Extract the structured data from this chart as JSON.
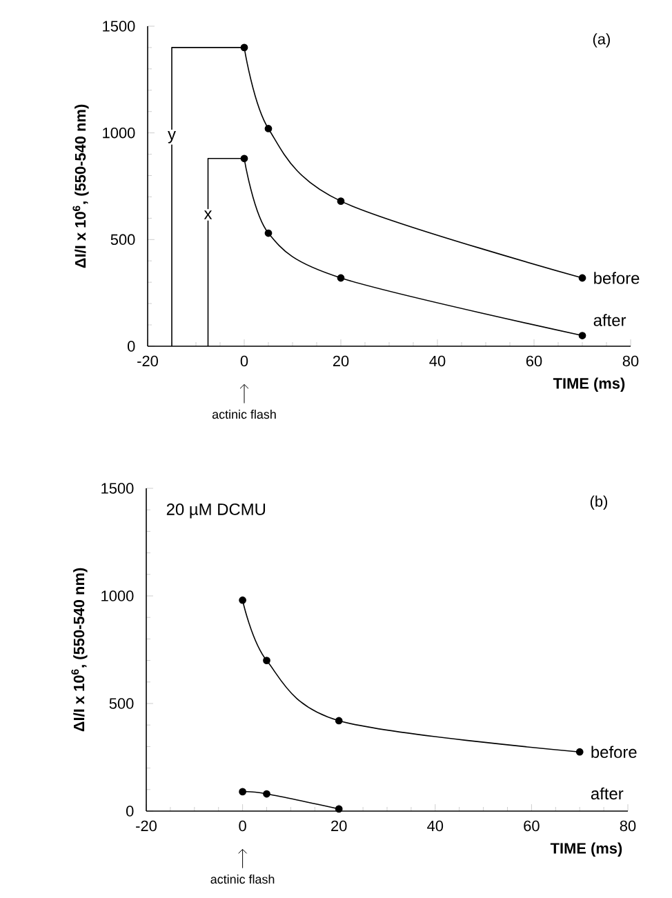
{
  "chart_data": [
    {
      "type": "line",
      "title": "(a)",
      "xlabel": "TIME  (ms)",
      "ylabel": "ΔI/I x 10$^{6}$, (550-540 nm)",
      "xlim": [
        -20,
        80
      ],
      "ylim": [
        0,
        1500
      ],
      "xticks": [
        -20,
        0,
        20,
        40,
        60,
        80
      ],
      "yticks": [
        0,
        500,
        1000,
        1500
      ],
      "marker": "circle",
      "grid": false,
      "annotations": [
        "actinic flash"
      ],
      "series": [
        {
          "name": "before",
          "color": "#000000",
          "x": [
            0,
            5,
            20,
            70
          ],
          "values": [
            1400,
            1020,
            680,
            320
          ]
        },
        {
          "name": "after",
          "color": "#000000",
          "x": [
            0,
            5,
            20,
            70
          ],
          "values": [
            880,
            530,
            320,
            50
          ]
        },
        {
          "name": "y",
          "type": "step",
          "marker": "none",
          "color": "#000000",
          "x": [
            -15,
            0
          ],
          "values": [
            0,
            1400
          ]
        },
        {
          "name": "x",
          "type": "step",
          "marker": "none",
          "color": "#000000",
          "x": [
            -7.5,
            0
          ],
          "values": [
            0,
            880
          ]
        }
      ]
    },
    {
      "type": "line",
      "title": "(b)",
      "xlabel": "TIME  (ms)",
      "ylabel": "ΔI/I x 10$^{6}$, (550-540 nm)",
      "xlim": [
        -20,
        80
      ],
      "ylim": [
        0,
        1500
      ],
      "xticks": [
        -20,
        0,
        20,
        40,
        60,
        80
      ],
      "yticks": [
        0,
        500,
        1000,
        1500
      ],
      "marker": "circle",
      "grid": false,
      "annotations": [
        "20 µM DCMU",
        "actinic flash"
      ],
      "series": [
        {
          "name": "before",
          "color": "#000000",
          "x": [
            0,
            5,
            20,
            70
          ],
          "values": [
            980,
            700,
            420,
            275
          ]
        },
        {
          "name": "after",
          "color": "#000000",
          "x": [
            0,
            5,
            20
          ],
          "values": [
            90,
            80,
            10
          ]
        }
      ]
    }
  ]
}
